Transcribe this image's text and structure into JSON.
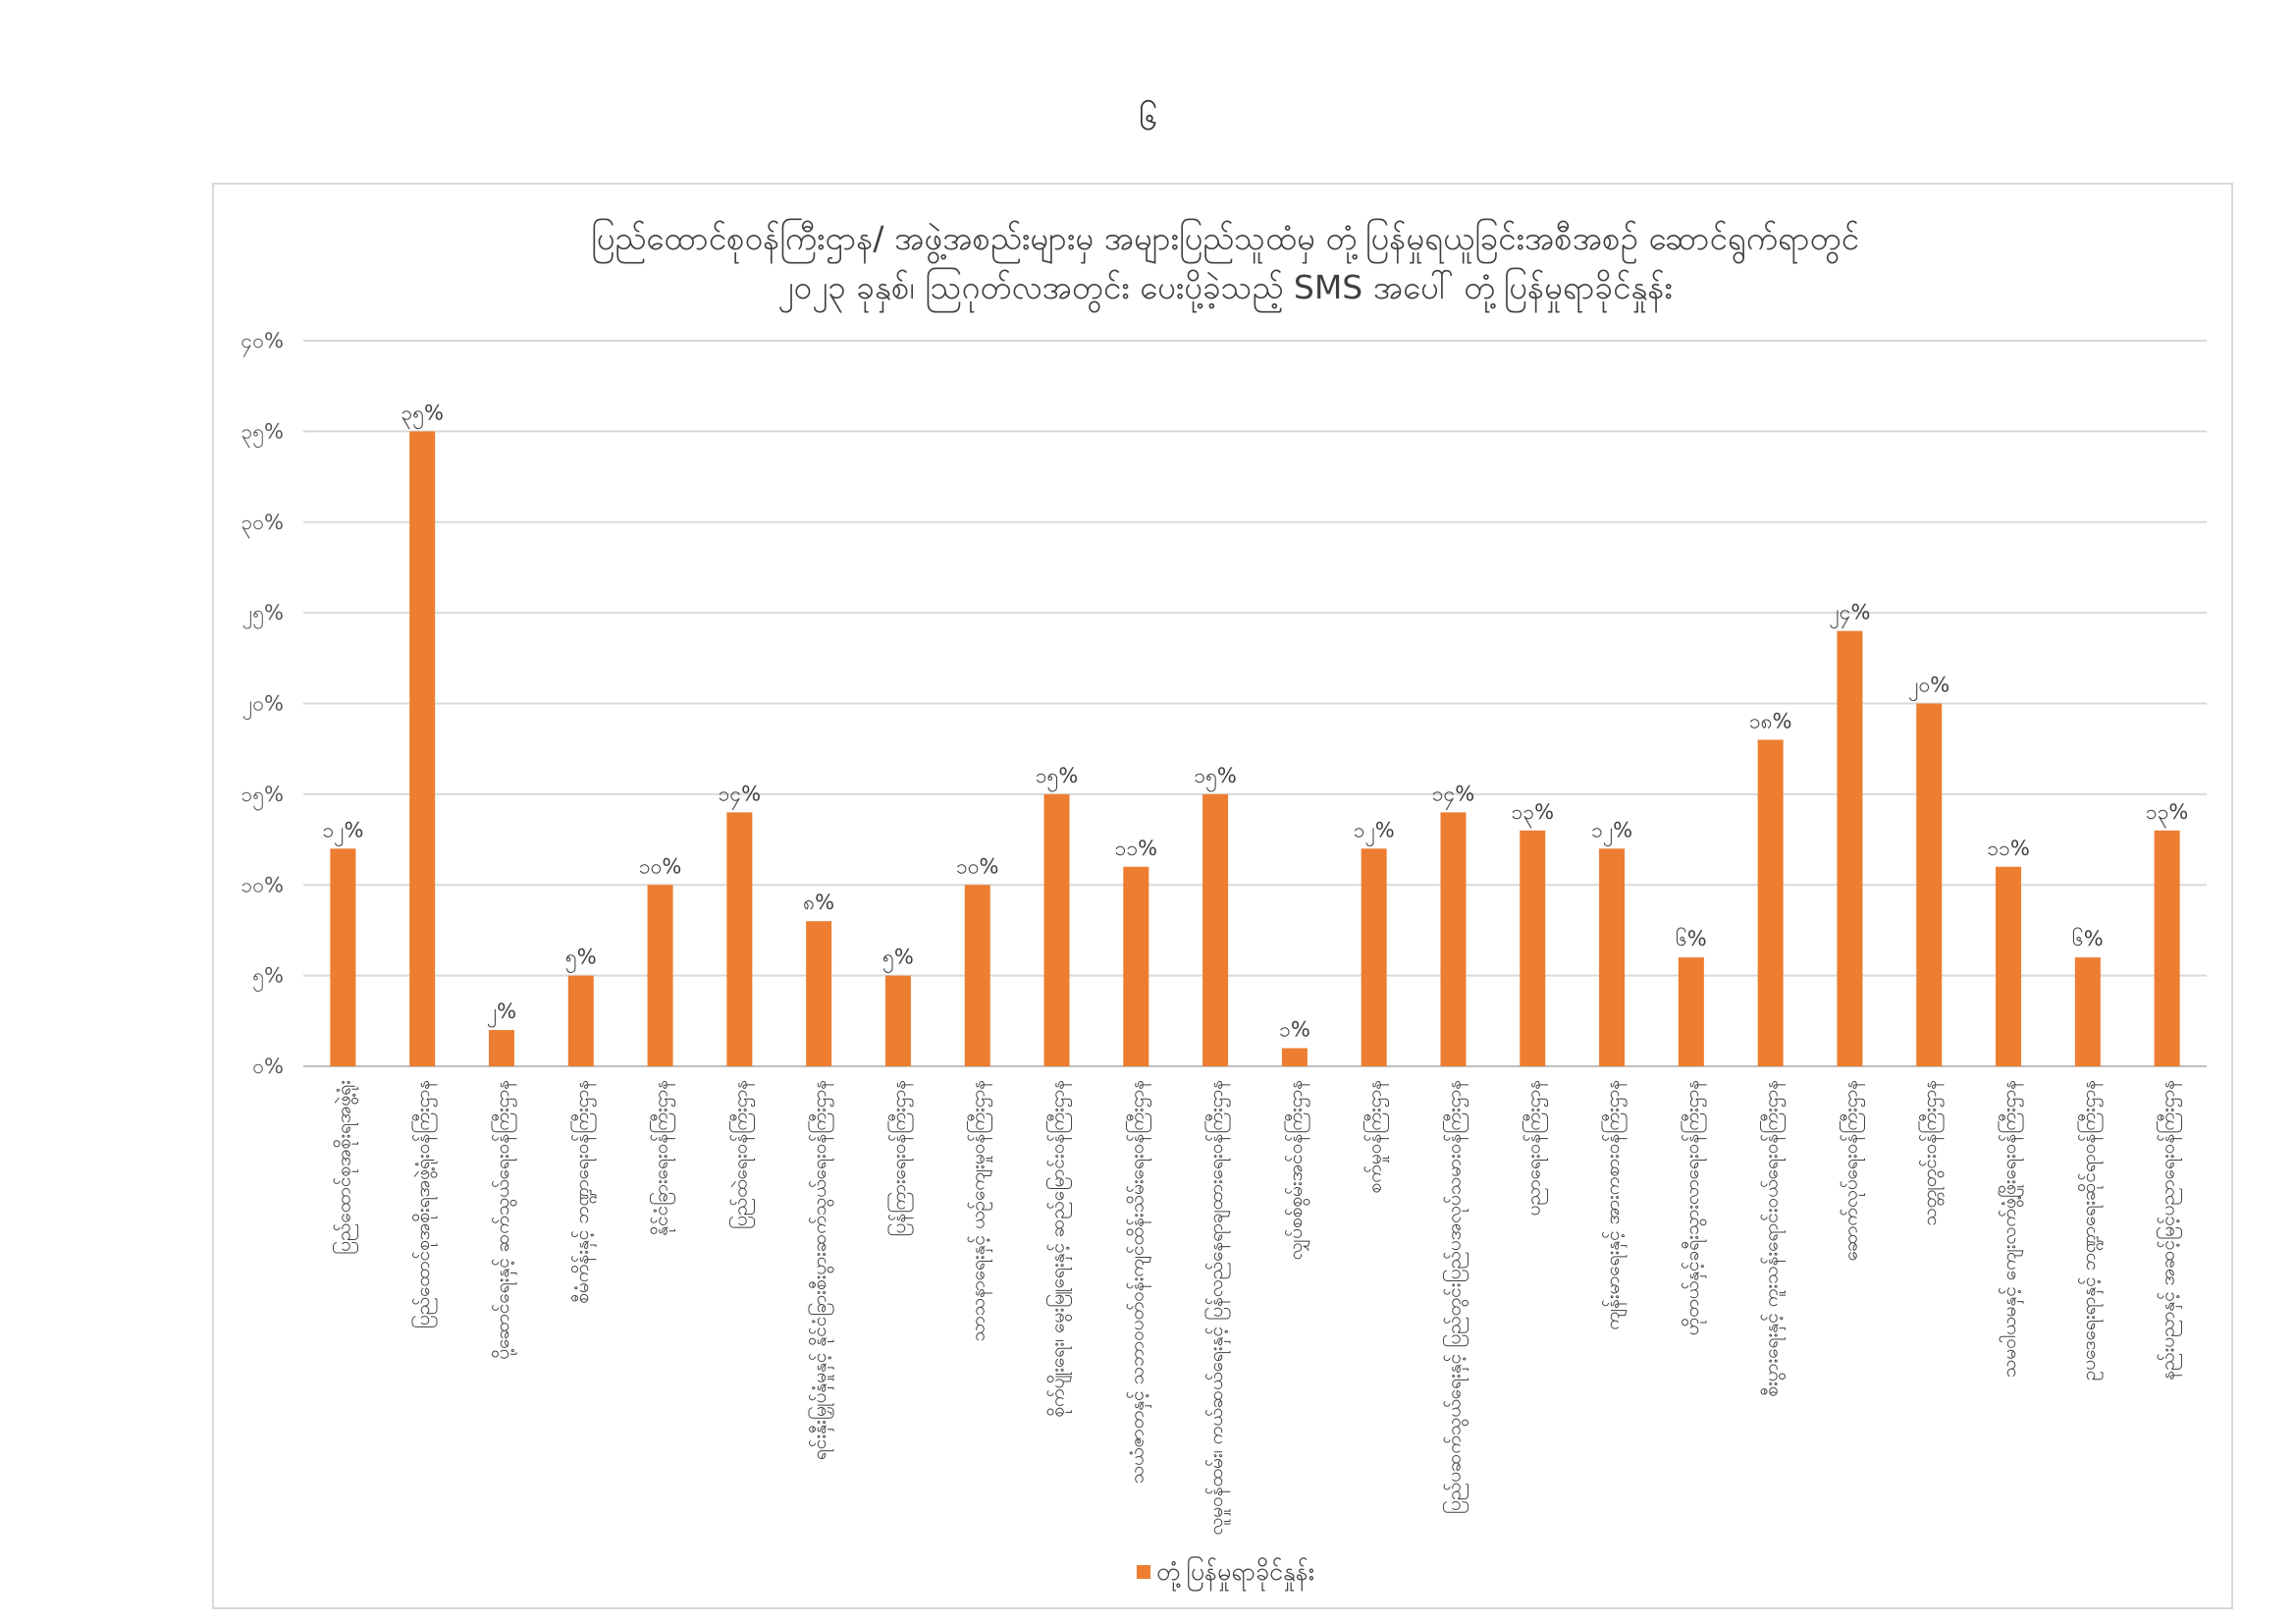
{
  "page_number": "၆",
  "chart_data": {
    "type": "bar",
    "title_lines": [
      "ပြည်ထောင်စုဝန်ကြီးဌာန/ အဖွဲ့အစည်းများမှ အများပြည်သူထံမှ တုံ့ပြန်မှုရယူခြင်းအစီအစဉ် ဆောင်ရွက်ရာတွင်",
      "၂၀၂၃ ခုနှစ်၊ ဩဂုတ်လအတွင်း ပေးပို့ခဲ့သည့် SMS အပေါ် တုံ့ပြန်မှုရာခိုင်နှုန်း"
    ],
    "ylim": [
      0,
      40
    ],
    "yticks": [
      0,
      5,
      10,
      15,
      20,
      25,
      30,
      35,
      40
    ],
    "ytick_labels": [
      "၀%",
      "၅%",
      "၁၀%",
      "၁၅%",
      "၂၀%",
      "၂၅%",
      "၃၀%",
      "၃၅%",
      "၄၀%"
    ],
    "grid": true,
    "legend_position": "bottom",
    "color": "#ed7d31",
    "categories": [
      "ပြည်ထောင်စုအစိုးရအဖွဲ့ရုံး",
      "ပြည်ထောင်စုအစိုးရအဖွဲ့ရုံးဝန်ကြီးဌာန",
      "ပို့ဆောင်ရေးနှင့် ဆက်သွယ်ရေးဝန်ကြီးဌာန",
      "စီမံကိန်းနှင့် ဘဏ္ဍာရေးဝန်ကြီးဌာန",
      "နိုင်ငံခြားရေးဝန်ကြီးဌာန",
      "ပြည်ထဲရေးဝန်ကြီးဌာန",
      "ရင်းနှီးမြှုပ်နှံမှုနှင့် နိုင်ငံခြားစီးပွားဆက်သွယ်ရေးဝန်ကြီးဌာန",
      "ပြန်ကြားရေးဝန်ကြီးဌာန",
      "သာသနာရေးနှင့် ယဉ်ကျေးမှုဝန်ကြီးဌာန",
      "စိုက်ပျိုးရေး၊ မွေးမြူရေးနှင့် ဆည်မြောင်းဝန်ကြီးဌာန",
      "သယံဇာတနှင့် သဘာဝပတ်ဝန်းကျင်ထိန်းသိမ်းရေးဝန်ကြီးဌာန",
      "လူမှုဝန်ထမ်း၊ ကယ်ဆယ်ရေးနှင့် ပြန်လည်နေရာချထားရေးဝန်ကြီးဌာန",
      "လျှပ်စစ်စွမ်းအင်ဝန်ကြီးဌာန",
      "စက်မှုဝန်ကြီးဌာန",
      "ပြည်ပဆက်သွယ်ရေးနှင့် ပြည်တွင်းပြည်ပအလုပ်သမားဝန်ကြီးဌာန",
      "ပညာရေးဝန်ကြီးဌာန",
      "ကျန်းမာရေးနှင့် အားကစားဝန်ကြီးဌာန",
      "ဟိုတယ်နှင့်ခရီးသွားလာရေးဝန်ကြီးဌာန",
      "စီးပွားရေးနှင့် ကူးသန်းရောင်းဝယ်ရေးဝန်ကြီးဌာန",
      "ဆောက်လုပ်ရေးဝန်ကြီးဌာန",
      "သတ္တုတွင်းဝန်ကြီးဌာန",
      "သမဝါယမနှင့် ကျေးလက်ဖွံ့ဖြိုးရေးဝန်ကြီးဌာန",
      "ဥပဒေရေးရာနှင့် ဘဏ္ဍာရေးဆိုင်ရာဝန်ကြီးဌာန",
      "နည်းပညာနှင့် အဆင့်မြင့်ပညာရေးဝန်ကြီးဌာန"
    ],
    "values": [
      12,
      35,
      2,
      5,
      10,
      14,
      8,
      5,
      10,
      15,
      11,
      15,
      1,
      12,
      14,
      13,
      12,
      6,
      18,
      24,
      20,
      11,
      6,
      13
    ],
    "value_labels": [
      "၁၂%",
      "၃၅%",
      "၂%",
      "၅%",
      "၁၀%",
      "၁၄%",
      "၈%",
      "၅%",
      "၁၀%",
      "၁၅%",
      "၁၁%",
      "၁၅%",
      "၁%",
      "၁၂%",
      "၁၄%",
      "၁၃%",
      "၁၂%",
      "၆%",
      "၁၈%",
      "၂၄%",
      "၂၀%",
      "၁၁%",
      "၆%",
      "၁၃%"
    ],
    "series": [
      {
        "name": "တုံ့ပြန်မှုရာခိုင်နှုန်း"
      }
    ]
  }
}
